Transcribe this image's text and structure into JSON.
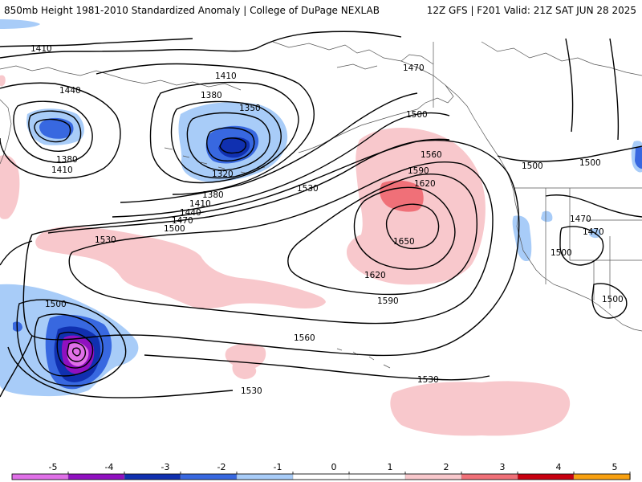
{
  "header": {
    "left_title": "850mb Height 1981-2010 Standardized Anomaly | College of DuPage NEXLAB",
    "right_title": "12Z GFS | F201 Valid: 21Z SAT JUN 28 2025"
  },
  "colorbar": {
    "ticks": [
      "-5",
      "-4",
      "-3",
      "-2",
      "-1",
      "0",
      "1",
      "2",
      "3",
      "4",
      "5"
    ],
    "bins": [
      {
        "color": "#e070e8"
      },
      {
        "color": "#9010c0"
      },
      {
        "color": "#1030b0"
      },
      {
        "color": "#3868e0"
      },
      {
        "color": "#a8ccf8"
      },
      {
        "color": "#ffffff"
      },
      {
        "color": "#ffffff"
      },
      {
        "color": "#f8c8cc"
      },
      {
        "color": "#f07078"
      },
      {
        "color": "#c80010"
      },
      {
        "color": "#f8a010"
      }
    ]
  },
  "contour_labels": {
    "c1410_tl": "1410",
    "c1440_a": "1440",
    "c1380_a": "1380",
    "c1410_b": "1410",
    "c1410_c": "1410",
    "c1380_c": "1380",
    "c1350": "1350",
    "c1320": "1320",
    "c1380_d": "1380",
    "c1410_d": "1410",
    "c1440_d": "1440",
    "c1470_d": "1470",
    "c1500_d": "1500",
    "c1530_w": "1530",
    "c1530_m": "1530",
    "c1470_ak": "1470",
    "c1500_ak": "1500",
    "c1560_n": "1560",
    "c1590_n": "1590",
    "c1620_n": "1620",
    "c1650": "1650",
    "c1620_s": "1620",
    "c1590_s": "1590",
    "c1560_s": "1560",
    "c1530_s": "1530",
    "c1530_se": "1530",
    "c1500_sw": "1500",
    "c1500_cst": "1500",
    "c1500_ne": "1500",
    "c1470_w1": "1470",
    "c1470_w2": "1470",
    "c1500_us": "1500",
    "c1500_e": "1500"
  }
}
